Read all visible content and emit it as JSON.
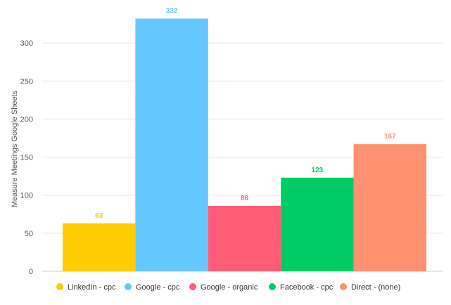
{
  "chart_data": {
    "type": "bar",
    "title": "",
    "xlabel": "",
    "ylabel": "Measure Meetings Google Sheets",
    "ylim": [
      0,
      350
    ],
    "yticks": [
      0,
      50,
      100,
      150,
      200,
      250,
      300
    ],
    "grid": true,
    "legend": "bottom",
    "series": [
      {
        "name": "LinkedIn - cpc",
        "value": 63,
        "color": "#FFCC00"
      },
      {
        "name": "Google - cpc",
        "value": 332,
        "color": "#66C7FF"
      },
      {
        "name": "Google - organic",
        "value": 86,
        "color": "#FF5C78"
      },
      {
        "name": "Facebook - cpc",
        "value": 123,
        "color": "#00CC66"
      },
      {
        "name": "Direct - (none)",
        "value": 167,
        "color": "#FF9070"
      }
    ]
  }
}
